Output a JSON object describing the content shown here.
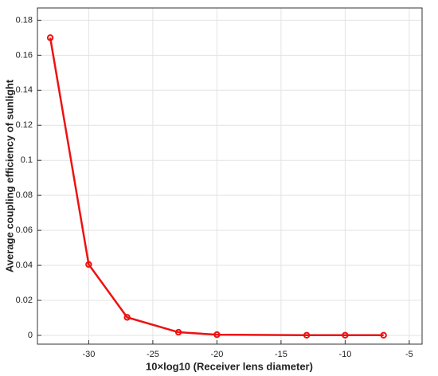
{
  "chart_data": {
    "type": "line",
    "xlabel": "10×log10 (Receiver lens diameter)",
    "ylabel": "Average coupling efficiency of sunlight",
    "x": [
      -33,
      -30,
      -27,
      -23,
      -20,
      -13,
      -10,
      -7
    ],
    "values": [
      0.17,
      0.0405,
      0.0103,
      0.0018,
      0.0004,
      0.0001,
      0.0001,
      0.0001
    ],
    "color": "#ee1111",
    "xlim": [
      -34,
      -4
    ],
    "xticks": [
      -30,
      -25,
      -20,
      -15,
      -10,
      -5
    ],
    "ylim": [
      -0.005,
      0.187
    ],
    "yticks": [
      0,
      0.02,
      0.04,
      0.06,
      0.08,
      0.1,
      0.12,
      0.14,
      0.16,
      0.18
    ],
    "grid": true
  }
}
